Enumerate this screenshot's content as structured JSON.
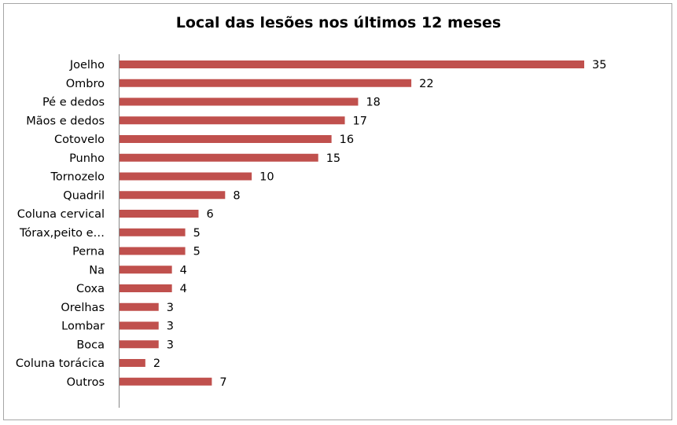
{
  "chart_data": {
    "type": "bar",
    "orientation": "horizontal",
    "title": "Local das lesões nos últimos 12 meses",
    "categories": [
      "Joelho",
      "Ombro",
      "Pé e dedos",
      "Mãos e dedos",
      "Cotovelo",
      "Punho",
      "Tornozelo",
      "Quadril",
      "Coluna cervical",
      "Tórax,peito e…",
      "Perna",
      "Na",
      "Coxa",
      "Orelhas",
      "Lombar",
      "Boca",
      "Coluna torácica",
      "Outros"
    ],
    "values": [
      35,
      22,
      18,
      17,
      16,
      15,
      10,
      8,
      6,
      5,
      5,
      4,
      4,
      3,
      3,
      3,
      2,
      7
    ],
    "bar_color": "#c0504d",
    "xlim": [
      0,
      35
    ],
    "grid": false,
    "legend": "none",
    "data_labels": true
  }
}
